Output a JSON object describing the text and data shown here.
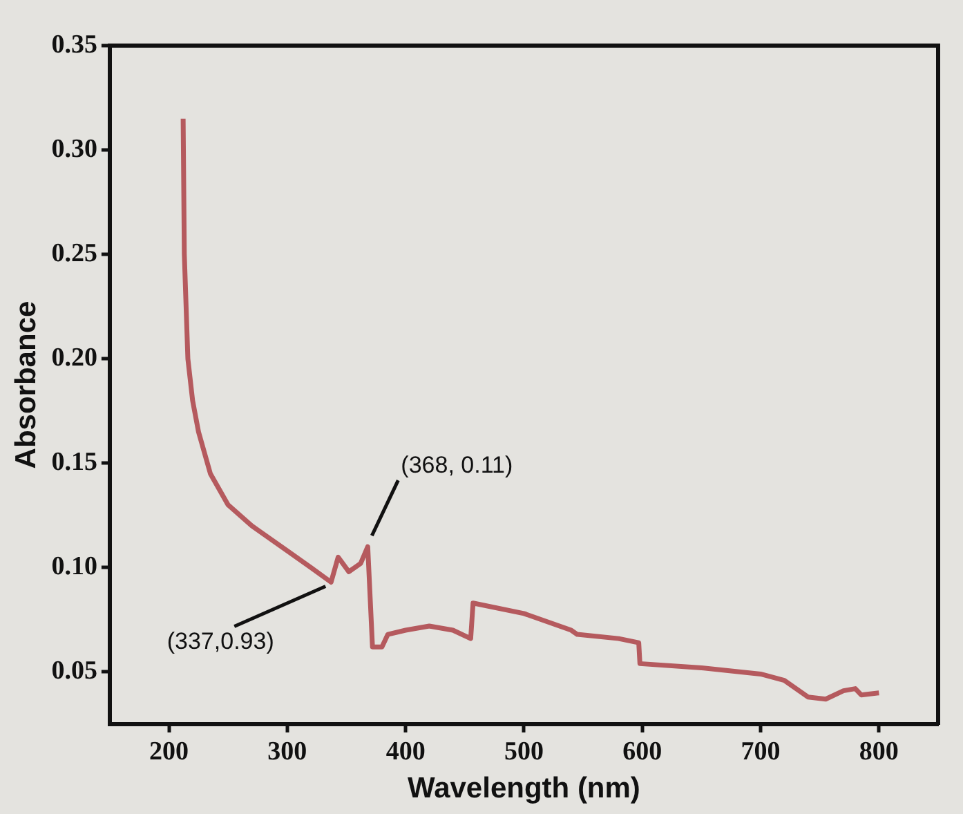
{
  "chart_data": {
    "type": "line",
    "xlabel": "Wavelength (nm)",
    "ylabel": "Absorbance",
    "x": [
      212,
      213,
      216,
      220,
      225,
      235,
      250,
      270,
      300,
      320,
      337,
      343,
      352,
      362,
      368,
      372,
      380,
      385,
      400,
      420,
      440,
      455,
      457,
      500,
      540,
      545,
      580,
      597,
      598,
      650,
      700,
      720,
      740,
      755,
      770,
      780,
      785,
      800
    ],
    "series": [
      {
        "color": "#b55a5e",
        "values": [
          0.315,
          0.25,
          0.2,
          0.18,
          0.165,
          0.145,
          0.13,
          0.12,
          0.108,
          0.1,
          0.093,
          0.105,
          0.098,
          0.102,
          0.11,
          0.062,
          0.062,
          0.068,
          0.07,
          0.072,
          0.07,
          0.066,
          0.083,
          0.078,
          0.07,
          0.068,
          0.066,
          0.064,
          0.054,
          0.052,
          0.049,
          0.046,
          0.038,
          0.037,
          0.041,
          0.042,
          0.039,
          0.04
        ]
      }
    ],
    "xlim": [
      150,
      850
    ],
    "xticks": [
      200,
      300,
      400,
      500,
      600,
      700,
      800
    ],
    "ylim": [
      0.025,
      0.35
    ],
    "yticks": [
      0.05,
      {
        "value": 0.1,
        "label": "0.10"
      },
      0.15,
      {
        "value": 0.2,
        "label": "0.20"
      },
      0.25,
      {
        "value": 0.3,
        "label": "0.30"
      },
      0.35
    ],
    "grid": false,
    "legend": false,
    "marker": "none",
    "line_style": "solid",
    "annotations": [
      {
        "text": "(368, 0.11)",
        "x": 368,
        "y": 0.11
      },
      {
        "text": "(337,0.93)",
        "x": 337,
        "y": 0.093
      }
    ]
  }
}
